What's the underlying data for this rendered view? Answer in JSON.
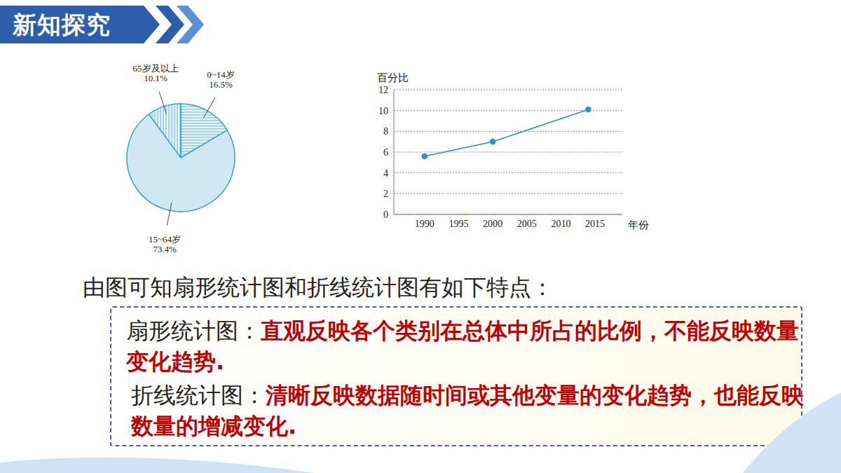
{
  "slide": {
    "header": "新知探究",
    "intro": "由图可知扇形统计图和折线统计图有如下特点：",
    "points": [
      {
        "label": "扇形统计图：",
        "text": "直观反映各个类别在总体中所占的比例，不能反映数量变化趋势."
      },
      {
        "label": "折线统计图：",
        "text": "清晰反映数据随时间或其他变量的变化趋势，也能反映数量的增减变化."
      }
    ]
  },
  "chart_data": [
    {
      "type": "pie",
      "categories": [
        "0~14岁",
        "15~64岁",
        "65岁及以上"
      ],
      "values": [
        16.5,
        73.4,
        10.1
      ],
      "value_labels": [
        "16.5%",
        "73.4%",
        "10.1%"
      ],
      "colors": [
        "#eaf5fb",
        "#cfe8f4",
        "#eaf5fb"
      ]
    },
    {
      "type": "line",
      "x": [
        1990,
        2000,
        2014
      ],
      "values": [
        5.6,
        7.0,
        10.1
      ],
      "color": "#2a8fcb",
      "marker": "circle",
      "x_label": "年份",
      "y_label": "百分比",
      "xlim": [
        1985.5,
        2019
      ],
      "xticks": [
        1990,
        1995,
        2000,
        2005,
        2010,
        2015
      ],
      "ylim": [
        0,
        12
      ],
      "yticks": [
        0,
        2,
        4,
        6,
        8,
        10,
        12
      ],
      "grid": true
    }
  ]
}
